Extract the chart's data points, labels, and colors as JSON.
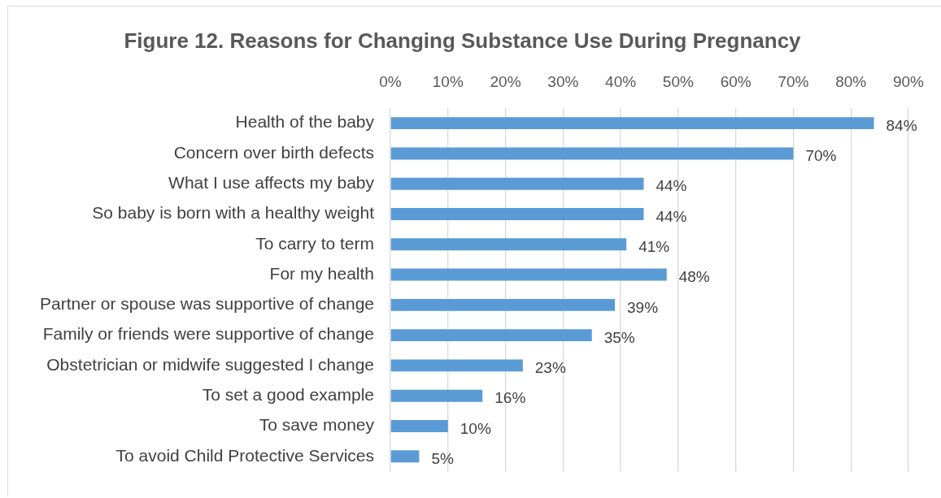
{
  "chart_data": {
    "type": "bar",
    "orientation": "horizontal",
    "title": "Figure 12. Reasons for Changing Substance Use During Pregnancy",
    "categories": [
      "Health of the baby",
      "Concern over birth defects",
      "What I use affects my baby",
      "So baby is born with a healthy weight",
      "To carry to term",
      "For my health",
      "Partner or spouse was supportive of change",
      "Family or friends were supportive of change",
      "Obstetrician or midwife suggested I change",
      "To set a good example",
      "To save money",
      "To avoid Child Protective Services"
    ],
    "values": [
      84,
      70,
      44,
      44,
      41,
      48,
      39,
      35,
      23,
      16,
      10,
      5
    ],
    "value_labels": [
      "84%",
      "70%",
      "44%",
      "44%",
      "41%",
      "48%",
      "39%",
      "35%",
      "23%",
      "16%",
      "10%",
      "5%"
    ],
    "color": "#5b9bd5",
    "xlim": [
      0,
      90
    ],
    "xticks": [
      {
        "value": 0,
        "label": "0%"
      },
      {
        "value": 10,
        "label": "10%"
      },
      {
        "value": 20,
        "label": "20%"
      },
      {
        "value": 30,
        "label": "30%"
      },
      {
        "value": 40,
        "label": "40%"
      },
      {
        "value": 50,
        "label": "50%"
      },
      {
        "value": 60,
        "label": "60%"
      },
      {
        "value": 70,
        "label": "70%"
      },
      {
        "value": 80,
        "label": "80%"
      },
      {
        "value": 90,
        "label": "90%"
      }
    ],
    "grid": "x"
  }
}
